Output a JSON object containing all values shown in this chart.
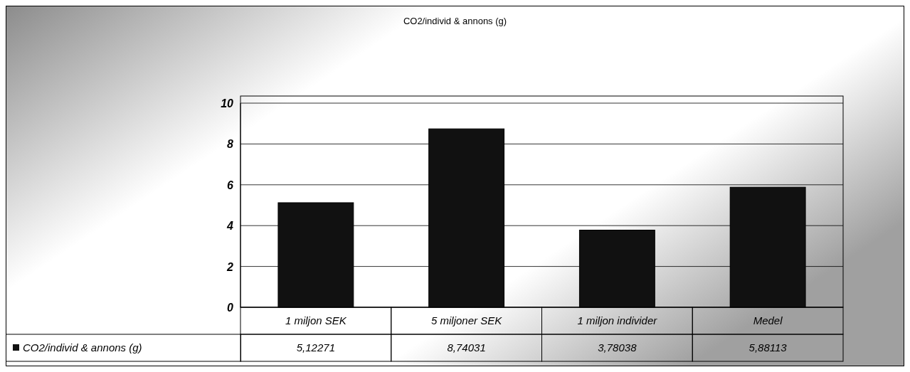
{
  "chart_data": {
    "type": "bar",
    "title": "CO2/individ & annons (g)",
    "categories": [
      "1 miljon SEK",
      "5 miljoner SEK",
      "1 miljon individer",
      "Medel"
    ],
    "series": [
      {
        "name": "CO2/individ & annons (g)",
        "color": "#111111",
        "values": [
          5.12271,
          8.74031,
          3.78038,
          5.88113
        ],
        "value_labels": [
          "5,12271",
          "8,74031",
          "3,78038",
          "5,88113"
        ]
      }
    ],
    "ylim": [
      0,
      10
    ],
    "yticks": [
      0,
      2,
      4,
      6,
      8,
      10
    ],
    "grid": "y",
    "legend": "bottom left"
  }
}
